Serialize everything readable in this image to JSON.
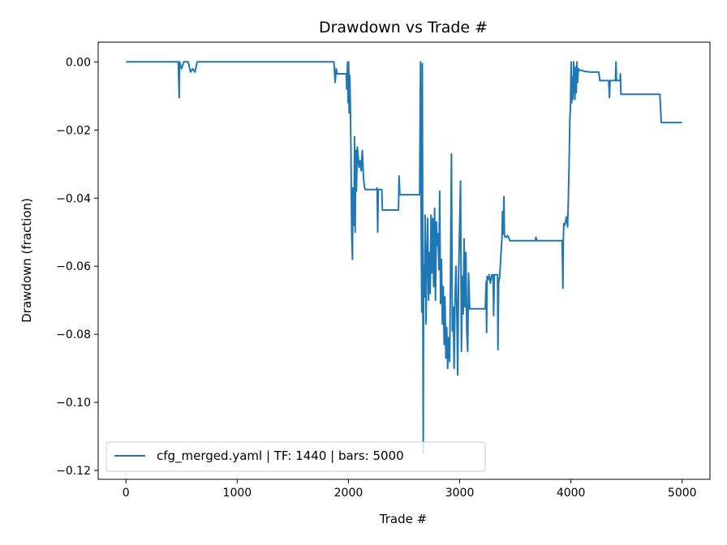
{
  "chart_data": {
    "type": "line",
    "title": "Drawdown vs Trade #",
    "xlabel": "Trade #",
    "ylabel": "Drawdown (fraction)",
    "xlim": [
      -250,
      5250
    ],
    "ylim": [
      -0.1226,
      0.0058
    ],
    "grid": false,
    "legend_position": "lower-left",
    "line_color": "#1f77b4",
    "x_ticks": [
      0,
      1000,
      2000,
      3000,
      4000,
      5000
    ],
    "x_tick_labels": [
      "0",
      "1000",
      "2000",
      "3000",
      "4000",
      "5000"
    ],
    "y_ticks": [
      0.0,
      -0.02,
      -0.04,
      -0.06,
      -0.08,
      -0.1,
      -0.12
    ],
    "y_tick_labels": [
      "0.00",
      "−0.02",
      "−0.04",
      "−0.06",
      "−0.08",
      "−0.10",
      "−0.12"
    ],
    "series": [
      {
        "name": "cfg_merged.yaml | TF: 1440 | bars: 5000",
        "points": [
          [
            0,
            0.0
          ],
          [
            470,
            0.0
          ],
          [
            475,
            -0.006
          ],
          [
            478,
            -0.0105
          ],
          [
            482,
            0.0
          ],
          [
            500,
            -0.002
          ],
          [
            520,
            0.0
          ],
          [
            560,
            0.0
          ],
          [
            580,
            -0.003
          ],
          [
            600,
            -0.002
          ],
          [
            620,
            -0.003
          ],
          [
            640,
            0.0
          ],
          [
            700,
            0.0
          ],
          [
            1870,
            0.0
          ],
          [
            1880,
            -0.006
          ],
          [
            1890,
            -0.002
          ],
          [
            1900,
            -0.0035
          ],
          [
            1980,
            -0.0035
          ],
          [
            1985,
            -0.008
          ],
          [
            1992,
            0.0
          ],
          [
            1997,
            -0.012
          ],
          [
            2002,
            0.0
          ],
          [
            2006,
            -0.015
          ],
          [
            2012,
            -0.004
          ],
          [
            2018,
            -0.014
          ],
          [
            2022,
            -0.025
          ],
          [
            2026,
            -0.04
          ],
          [
            2030,
            -0.052
          ],
          [
            2036,
            -0.058
          ],
          [
            2040,
            -0.037
          ],
          [
            2045,
            -0.038
          ],
          [
            2050,
            -0.048
          ],
          [
            2055,
            -0.022
          ],
          [
            2060,
            -0.05
          ],
          [
            2066,
            -0.026
          ],
          [
            2072,
            -0.038
          ],
          [
            2080,
            -0.025
          ],
          [
            2088,
            -0.028
          ],
          [
            2095,
            -0.031
          ],
          [
            2105,
            -0.029
          ],
          [
            2115,
            -0.032
          ],
          [
            2125,
            -0.026
          ],
          [
            2135,
            -0.034
          ],
          [
            2145,
            -0.037
          ],
          [
            2155,
            -0.0375
          ],
          [
            2250,
            -0.0375
          ],
          [
            2258,
            -0.037
          ],
          [
            2263,
            -0.05
          ],
          [
            2268,
            -0.0375
          ],
          [
            2300,
            -0.0375
          ],
          [
            2305,
            -0.0435
          ],
          [
            2450,
            -0.0435
          ],
          [
            2455,
            -0.0335
          ],
          [
            2462,
            -0.039
          ],
          [
            2640,
            -0.039
          ],
          [
            2644,
            -0.02
          ],
          [
            2648,
            0.0
          ],
          [
            2652,
            -0.035
          ],
          [
            2656,
            -0.06
          ],
          [
            2660,
            -0.0735
          ],
          [
            2664,
            -0.0005
          ],
          [
            2668,
            -0.05
          ],
          [
            2672,
            -0.115
          ],
          [
            2676,
            -0.06
          ],
          [
            2682,
            -0.069
          ],
          [
            2690,
            -0.045
          ],
          [
            2698,
            -0.077
          ],
          [
            2705,
            -0.058
          ],
          [
            2712,
            -0.046
          ],
          [
            2720,
            -0.07
          ],
          [
            2728,
            -0.056
          ],
          [
            2735,
            -0.068
          ],
          [
            2742,
            -0.045
          ],
          [
            2750,
            -0.062
          ],
          [
            2758,
            -0.046
          ],
          [
            2766,
            -0.066
          ],
          [
            2774,
            -0.043
          ],
          [
            2782,
            -0.07
          ],
          [
            2790,
            -0.047
          ],
          [
            2798,
            -0.054
          ],
          [
            2805,
            -0.0505
          ],
          [
            2813,
            -0.061
          ],
          [
            2820,
            -0.038
          ],
          [
            2828,
            -0.071
          ],
          [
            2836,
            -0.058
          ],
          [
            2844,
            -0.077
          ],
          [
            2852,
            -0.066
          ],
          [
            2860,
            -0.083
          ],
          [
            2868,
            -0.069
          ],
          [
            2876,
            -0.087
          ],
          [
            2884,
            -0.078
          ],
          [
            2892,
            -0.09
          ],
          [
            2900,
            -0.081
          ],
          [
            2910,
            -0.088
          ],
          [
            2918,
            -0.061
          ],
          [
            2926,
            -0.027
          ],
          [
            2934,
            -0.079
          ],
          [
            2942,
            -0.072
          ],
          [
            2950,
            -0.09
          ],
          [
            2958,
            -0.07
          ],
          [
            2966,
            -0.06
          ],
          [
            2974,
            -0.072
          ],
          [
            2982,
            -0.092
          ],
          [
            2990,
            -0.063
          ],
          [
            3000,
            -0.048
          ],
          [
            3008,
            -0.035
          ],
          [
            3016,
            -0.085
          ],
          [
            3024,
            -0.063
          ],
          [
            3032,
            -0.074
          ],
          [
            3040,
            -0.052
          ],
          [
            3048,
            -0.072
          ],
          [
            3056,
            -0.056
          ],
          [
            3064,
            -0.079
          ],
          [
            3072,
            -0.085
          ],
          [
            3080,
            -0.062
          ],
          [
            3090,
            -0.0725
          ],
          [
            3230,
            -0.0725
          ],
          [
            3238,
            -0.0645
          ],
          [
            3242,
            -0.0795
          ],
          [
            3246,
            -0.063
          ],
          [
            3256,
            -0.064
          ],
          [
            3266,
            -0.0625
          ],
          [
            3276,
            -0.065
          ],
          [
            3290,
            -0.0625
          ],
          [
            3300,
            -0.0625
          ],
          [
            3305,
            -0.0745
          ],
          [
            3312,
            -0.0625
          ],
          [
            3340,
            -0.0625
          ],
          [
            3344,
            -0.0845
          ],
          [
            3350,
            -0.065
          ],
          [
            3360,
            -0.063
          ],
          [
            3370,
            -0.057
          ],
          [
            3380,
            -0.052
          ],
          [
            3385,
            -0.044
          ],
          [
            3390,
            -0.0505
          ],
          [
            3398,
            -0.0395
          ],
          [
            3402,
            -0.051
          ],
          [
            3410,
            -0.0515
          ],
          [
            3420,
            -0.0515
          ],
          [
            3430,
            -0.051
          ],
          [
            3440,
            -0.0515
          ],
          [
            3450,
            -0.0525
          ],
          [
            3480,
            -0.0525
          ],
          [
            3490,
            -0.0525
          ],
          [
            3680,
            -0.0525
          ],
          [
            3685,
            -0.0515
          ],
          [
            3694,
            -0.0525
          ],
          [
            3920,
            -0.0525
          ],
          [
            3924,
            -0.058
          ],
          [
            3928,
            -0.0665
          ],
          [
            3932,
            -0.052
          ],
          [
            3936,
            -0.0475
          ],
          [
            3944,
            -0.048
          ],
          [
            3960,
            -0.0455
          ],
          [
            3970,
            -0.0485
          ],
          [
            3976,
            -0.042
          ],
          [
            3984,
            -0.03
          ],
          [
            3990,
            -0.017
          ],
          [
            3996,
            -0.013
          ],
          [
            4002,
            0.0
          ],
          [
            4006,
            -0.012
          ],
          [
            4012,
            -0.0045
          ],
          [
            4018,
            -0.011
          ],
          [
            4024,
            0.0
          ],
          [
            4030,
            -0.0045
          ],
          [
            4036,
            -0.011
          ],
          [
            4042,
            -0.0015
          ],
          [
            4048,
            -0.009
          ],
          [
            4054,
            0.0
          ],
          [
            4060,
            -0.006
          ],
          [
            4066,
            -0.002
          ],
          [
            4080,
            -0.0025
          ],
          [
            4100,
            -0.0025
          ],
          [
            4120,
            -0.0028
          ],
          [
            4140,
            -0.0028
          ],
          [
            4165,
            -0.003
          ],
          [
            4200,
            -0.003
          ],
          [
            4250,
            -0.003
          ],
          [
            4260,
            -0.0055
          ],
          [
            4300,
            -0.0055
          ],
          [
            4340,
            -0.0055
          ],
          [
            4346,
            -0.0105
          ],
          [
            4352,
            -0.0055
          ],
          [
            4400,
            -0.0055
          ],
          [
            4405,
            0.0
          ],
          [
            4410,
            -0.0055
          ],
          [
            4440,
            -0.0055
          ],
          [
            4445,
            -0.0035
          ],
          [
            4450,
            -0.0095
          ],
          [
            4800,
            -0.0095
          ],
          [
            4806,
            -0.0135
          ],
          [
            4812,
            -0.0178
          ],
          [
            5000,
            -0.0178
          ]
        ]
      }
    ]
  }
}
